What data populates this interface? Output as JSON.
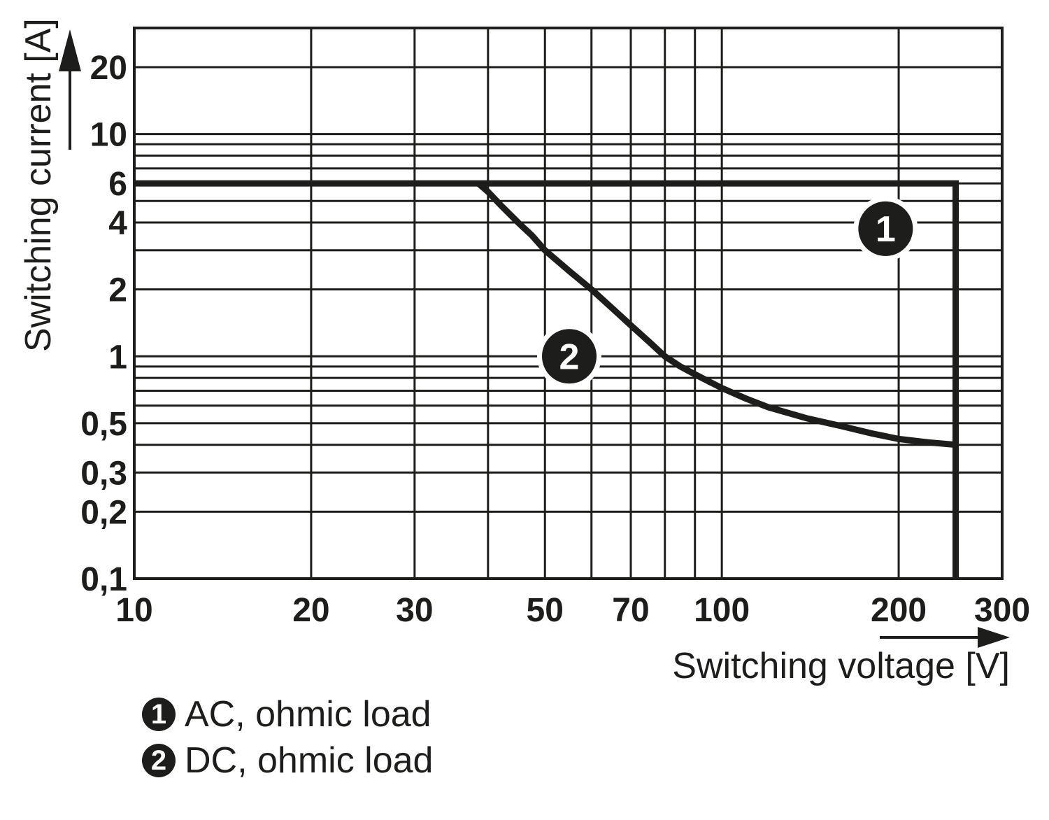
{
  "colors": {
    "ink": "#1d1d1b",
    "background": "#ffffff",
    "marker_fill": "#1d1d1b",
    "marker_text": "#ffffff"
  },
  "legend": {
    "items": [
      {
        "num": "1",
        "label": "AC, ohmic load"
      },
      {
        "num": "2",
        "label": "DC, ohmic load"
      }
    ]
  },
  "chart_data": {
    "type": "line",
    "title": "",
    "xlabel": "Switching voltage [V]",
    "ylabel": "Switching current [A]",
    "x_scale": "log",
    "y_scale": "log",
    "xlim": [
      10,
      300
    ],
    "ylim": [
      0.1,
      30
    ],
    "grid": "full logarithmic grid, major and minor lines on",
    "x_gridlines": [
      10,
      20,
      30,
      40,
      50,
      60,
      70,
      80,
      90,
      100,
      200,
      300
    ],
    "y_gridlines": [
      0.1,
      0.2,
      0.3,
      0.4,
      0.5,
      0.6,
      0.7,
      0.8,
      0.9,
      1,
      2,
      3,
      4,
      5,
      6,
      7,
      8,
      9,
      10,
      20,
      30
    ],
    "x_ticks": [
      {
        "value": 10,
        "label": "10"
      },
      {
        "value": 20,
        "label": "20"
      },
      {
        "value": 30,
        "label": "30"
      },
      {
        "value": 50,
        "label": "50"
      },
      {
        "value": 70,
        "label": "70"
      },
      {
        "value": 100,
        "label": "100"
      },
      {
        "value": 200,
        "label": "200"
      },
      {
        "value": 300,
        "label": "300"
      }
    ],
    "y_ticks": [
      {
        "value": 20,
        "label": "20"
      },
      {
        "value": 10,
        "label": "10"
      },
      {
        "value": 6,
        "label": "6"
      },
      {
        "value": 4,
        "label": "4"
      },
      {
        "value": 2,
        "label": "2"
      },
      {
        "value": 1,
        "label": "1"
      },
      {
        "value": 0.5,
        "label": "0,5"
      },
      {
        "value": 0.3,
        "label": "0,3"
      },
      {
        "value": 0.2,
        "label": "0,2"
      },
      {
        "value": 0.1,
        "label": "0,1"
      }
    ],
    "series": [
      {
        "name": "AC, ohmic load",
        "marker": "1",
        "points": [
          [
            10,
            6
          ],
          [
            250,
            6
          ],
          [
            250,
            0.1
          ]
        ]
      },
      {
        "name": "DC, ohmic load",
        "marker": "2",
        "points": [
          [
            38.5,
            6
          ],
          [
            40,
            5.5
          ],
          [
            42,
            4.8
          ],
          [
            45,
            4
          ],
          [
            47.5,
            3.5
          ],
          [
            50,
            3
          ],
          [
            55,
            2.42
          ],
          [
            60,
            2
          ],
          [
            65,
            1.65
          ],
          [
            70,
            1.38
          ],
          [
            75,
            1.17
          ],
          [
            80,
            1
          ],
          [
            85,
            0.9
          ],
          [
            90,
            0.83
          ],
          [
            100,
            0.72
          ],
          [
            110,
            0.645
          ],
          [
            120,
            0.59
          ],
          [
            140,
            0.525
          ],
          [
            160,
            0.485
          ],
          [
            180,
            0.45
          ],
          [
            200,
            0.425
          ],
          [
            225,
            0.41
          ],
          [
            250,
            0.4
          ]
        ]
      }
    ],
    "curve_markers": [
      {
        "num": "1",
        "x": 190,
        "y": 3.75
      },
      {
        "num": "2",
        "x": 55,
        "y": 1.0
      }
    ]
  }
}
